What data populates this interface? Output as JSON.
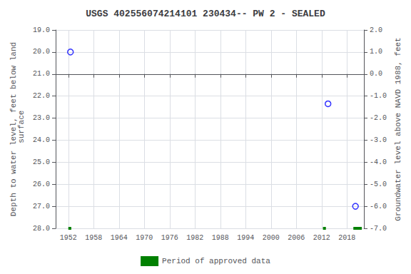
{
  "chart_data": {
    "type": "scatter",
    "title": "USGS 402556074214101 230434-- PW 2 - SEALED",
    "ylabel": "Depth to water level, feet below land\n surface",
    "y2label": "Groundwater level above NAVD 1988, feet",
    "xlim": [
      1949,
      2022
    ],
    "xticks": [
      1952,
      1958,
      1964,
      1970,
      1976,
      1982,
      1988,
      1994,
      2000,
      2006,
      2012,
      2018
    ],
    "ylim": [
      28.0,
      19.0
    ],
    "yticks": [
      {
        "value": 19.0,
        "label": "19.0"
      },
      {
        "value": 20.0,
        "label": "20.0"
      },
      {
        "value": 21.0,
        "label": "21.0"
      },
      {
        "value": 22.0,
        "label": "22.0"
      },
      {
        "value": 23.0,
        "label": "23.0"
      },
      {
        "value": 24.0,
        "label": "24.0"
      },
      {
        "value": 25.0,
        "label": "25.0"
      },
      {
        "value": 26.0,
        "label": "26.0"
      },
      {
        "value": 27.0,
        "label": "27.0"
      },
      {
        "value": 28.0,
        "label": "28.0"
      }
    ],
    "y2lim": [
      -7.0,
      2.0
    ],
    "y2ticks": [
      {
        "value": 2.0,
        "label": "2.0"
      },
      {
        "value": 1.0,
        "label": "1.0"
      },
      {
        "value": 0.0,
        "label": "0.0"
      },
      {
        "value": -1.0,
        "label": "-1.0"
      },
      {
        "value": -2.0,
        "label": "-2.0"
      },
      {
        "value": -3.0,
        "label": "-3.0"
      },
      {
        "value": -4.0,
        "label": "-4.0"
      },
      {
        "value": -5.0,
        "label": "-5.0"
      },
      {
        "value": -6.0,
        "label": "-6.0"
      },
      {
        "value": -7.0,
        "label": "-7.0"
      }
    ],
    "grid": true,
    "legend": "bottom",
    "series": [
      {
        "type": "scatter",
        "marker": "open_circle",
        "color": "#0000ff",
        "x": [
          1952.5,
          2013.5,
          2020.0
        ],
        "values": [
          20.0,
          22.35,
          27.0
        ]
      },
      {
        "type": "segments",
        "name": "Period of approved data",
        "color": "#008000",
        "x": [
          [
            1952,
            1952.7
          ],
          [
            2012.3,
            2013.0
          ],
          [
            2019.5,
            2021.5
          ]
        ],
        "values": [
          28.0,
          28.0,
          28.0
        ]
      }
    ]
  }
}
